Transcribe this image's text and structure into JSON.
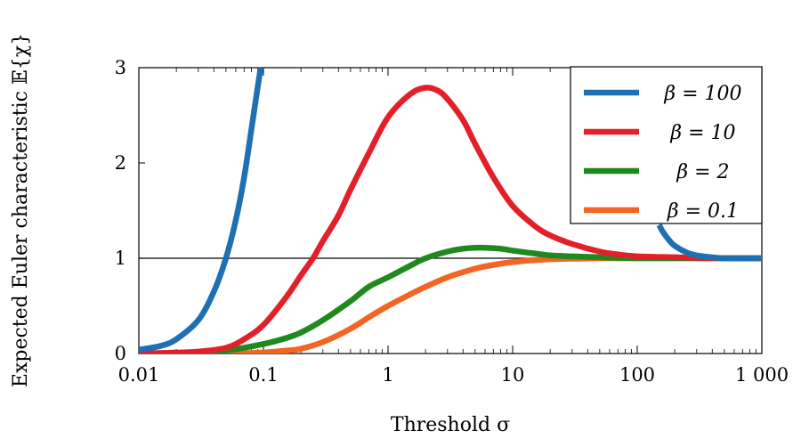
{
  "chart_data": {
    "type": "line",
    "title": "",
    "xlabel": "Threshold σ",
    "ylabel": "Expected Euler characteristic 𝔼{χ}",
    "xscale": "log",
    "xlim": [
      0.01,
      1000
    ],
    "ylim": [
      0,
      3
    ],
    "x_ticks": [
      0.01,
      0.1,
      1,
      10,
      100,
      1000
    ],
    "x_tick_labels": [
      "0.01",
      "0.1",
      "1",
      "10",
      "100",
      "1 000"
    ],
    "y_ticks": [
      0,
      1,
      2,
      3
    ],
    "y_tick_labels": [
      "0",
      "1",
      "2",
      "3"
    ],
    "reference_line": {
      "y": 1
    },
    "grid": false,
    "legend_position": "top-right",
    "series": [
      {
        "name": "β = 100",
        "color": "#1f6fb4",
        "x": [
          0.01,
          0.015,
          0.02,
          0.03,
          0.04,
          0.05,
          0.06,
          0.07,
          0.08,
          0.09,
          0.095,
          150,
          160,
          180,
          200,
          250,
          300,
          400,
          500,
          700,
          1000
        ],
        "y": [
          0.04,
          0.08,
          0.15,
          0.35,
          0.65,
          1.0,
          1.4,
          1.85,
          2.35,
          2.8,
          3.0,
          1.35,
          1.28,
          1.19,
          1.13,
          1.06,
          1.03,
          1.01,
          1.0,
          1.0,
          1.0
        ]
      },
      {
        "name": "β = 10",
        "color": "#e3202a",
        "x": [
          0.01,
          0.02,
          0.03,
          0.05,
          0.07,
          0.1,
          0.15,
          0.2,
          0.25,
          0.3,
          0.4,
          0.5,
          0.7,
          1,
          1.5,
          2,
          2.5,
          3,
          4,
          5,
          7,
          10,
          15,
          20,
          30,
          50,
          70,
          100,
          200,
          500,
          1000
        ],
        "y": [
          0.0,
          0.01,
          0.02,
          0.06,
          0.15,
          0.3,
          0.58,
          0.82,
          1.0,
          1.18,
          1.45,
          1.72,
          2.1,
          2.48,
          2.72,
          2.79,
          2.76,
          2.67,
          2.45,
          2.2,
          1.85,
          1.55,
          1.34,
          1.24,
          1.15,
          1.07,
          1.04,
          1.02,
          1.01,
          1.0,
          1.0
        ]
      },
      {
        "name": "β = 2",
        "color": "#1e8a1e",
        "x": [
          0.01,
          0.03,
          0.05,
          0.1,
          0.15,
          0.2,
          0.3,
          0.5,
          0.7,
          1,
          1.5,
          2,
          3,
          4,
          5,
          6,
          8,
          10,
          15,
          20,
          30,
          50,
          100,
          300,
          1000
        ],
        "y": [
          0.0,
          0.01,
          0.03,
          0.1,
          0.16,
          0.22,
          0.35,
          0.55,
          0.7,
          0.8,
          0.92,
          1.0,
          1.07,
          1.1,
          1.11,
          1.11,
          1.1,
          1.08,
          1.05,
          1.03,
          1.02,
          1.01,
          1.0,
          1.0,
          1.0
        ]
      },
      {
        "name": "β = 0.1",
        "color": "#f26522",
        "x": [
          0.01,
          0.05,
          0.1,
          0.15,
          0.2,
          0.3,
          0.5,
          0.7,
          1,
          1.5,
          2,
          3,
          5,
          7,
          10,
          15,
          20,
          30,
          50,
          100,
          300,
          1000
        ],
        "y": [
          0.0,
          0.0,
          0.01,
          0.03,
          0.05,
          0.12,
          0.26,
          0.38,
          0.5,
          0.62,
          0.7,
          0.8,
          0.89,
          0.93,
          0.96,
          0.98,
          0.99,
          0.995,
          1.0,
          1.0,
          1.0,
          1.0
        ]
      }
    ]
  }
}
